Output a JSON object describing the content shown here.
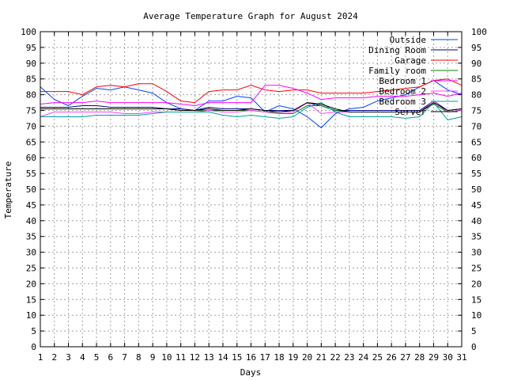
{
  "chart_data": {
    "type": "line",
    "title": "Average Temperature Graph for August 2024",
    "xlabel": "Days",
    "ylabel": "Temperature",
    "xlim": [
      1,
      31
    ],
    "ylim": [
      0,
      100
    ],
    "xticks": [
      1,
      2,
      3,
      4,
      5,
      6,
      7,
      8,
      9,
      10,
      11,
      12,
      13,
      14,
      15,
      16,
      17,
      18,
      19,
      20,
      21,
      22,
      23,
      24,
      25,
      26,
      27,
      28,
      29,
      30,
      31
    ],
    "yticks": [
      0,
      5,
      10,
      15,
      20,
      25,
      30,
      35,
      40,
      45,
      50,
      55,
      60,
      65,
      70,
      75,
      80,
      85,
      90,
      95,
      100
    ],
    "y2_mirror": true,
    "grid": true,
    "legend": "top-right",
    "x": [
      1,
      2,
      3,
      4,
      5,
      6,
      7,
      8,
      9,
      10,
      11,
      12,
      13,
      14,
      15,
      16,
      17,
      18,
      19,
      20,
      21,
      22,
      23,
      24,
      25,
      26,
      27,
      28,
      29,
      30,
      31
    ],
    "series": [
      {
        "name": "Outside",
        "color": "#0040ff",
        "values": [
          82.5,
          78.5,
          76.5,
          79.5,
          82,
          81.5,
          82.5,
          81.5,
          80.5,
          77.5,
          75.5,
          75,
          78,
          78,
          79.5,
          79,
          74.5,
          76.5,
          75.5,
          73,
          69.5,
          74,
          75.5,
          76,
          78,
          79,
          80,
          82.5,
          84.5,
          81.5,
          80
        ]
      },
      {
        "name": "Dining Room",
        "color": "#000080",
        "values": [
          76,
          76,
          76,
          76.5,
          76.5,
          76,
          76,
          76,
          76,
          75.5,
          75.5,
          75,
          76,
          75.5,
          75.5,
          75.5,
          75,
          75,
          75,
          77.5,
          76.5,
          75,
          75,
          75,
          75,
          75,
          75,
          75,
          78,
          75,
          75.5
        ]
      },
      {
        "name": "Garage",
        "color": "#ff0000",
        "values": [
          81,
          81,
          81,
          80,
          82.5,
          83,
          82.5,
          83.5,
          83.5,
          81,
          78,
          77.5,
          81,
          81.5,
          81.5,
          83,
          81.5,
          81,
          81.5,
          81.5,
          80.5,
          80.5,
          80.5,
          80.5,
          81,
          81.5,
          82,
          82.5,
          84.5,
          85,
          83
        ]
      },
      {
        "name": "Family room",
        "color": "#008000",
        "values": [
          75.5,
          75.5,
          75.5,
          75.5,
          75.5,
          75.5,
          75.5,
          75.5,
          75.5,
          75.5,
          75,
          75,
          75,
          75,
          75,
          75,
          74.5,
          74,
          74,
          76.5,
          76.5,
          75,
          74.5,
          74.5,
          74.5,
          74.5,
          74.5,
          74.5,
          77,
          74.5,
          75
        ]
      },
      {
        "name": "Bedroom 1",
        "color": "#ff00ff",
        "values": [
          77,
          77.5,
          77.5,
          77.5,
          78,
          77.5,
          77.5,
          77.5,
          77.5,
          77.5,
          77,
          76.5,
          77.5,
          77.5,
          77.5,
          77.5,
          83,
          83,
          82,
          80.5,
          78.5,
          79,
          79,
          79,
          79.5,
          79.5,
          79.5,
          80,
          80.5,
          79.5,
          80.5
        ]
      },
      {
        "name": "Bedroom 2",
        "color": "#ff40ff",
        "values": [
          73,
          74.5,
          74.5,
          74.5,
          74.5,
          74.5,
          74,
          74,
          74.5,
          74.5,
          74.5,
          74.5,
          75,
          74.5,
          74.5,
          75,
          74.5,
          74.5,
          74.5,
          77.5,
          74,
          74.5,
          74.5,
          74.5,
          74.5,
          74.5,
          74.5,
          74.5,
          78,
          74.5,
          75
        ]
      },
      {
        "name": "Bedroom 3",
        "color": "#00a0a0",
        "values": [
          73,
          73,
          73,
          73,
          73.5,
          73.5,
          73.5,
          73.5,
          74,
          74.5,
          74.5,
          74.5,
          74.5,
          73.5,
          73,
          73.5,
          73,
          72.5,
          73,
          76,
          77.5,
          74.5,
          73,
          73,
          73,
          73,
          72.5,
          73,
          77.5,
          72,
          73
        ]
      },
      {
        "name": "Server",
        "color": "#000000",
        "values": [
          75.5,
          75.5,
          75.5,
          75.5,
          75.5,
          75.5,
          75.5,
          75.5,
          75.5,
          75.5,
          75,
          75,
          75.5,
          75,
          75,
          75.5,
          75,
          74.5,
          75,
          77.5,
          77,
          75.5,
          74.5,
          74.5,
          74.5,
          74.5,
          74.5,
          74.5,
          77.5,
          75,
          75.5
        ]
      }
    ]
  }
}
